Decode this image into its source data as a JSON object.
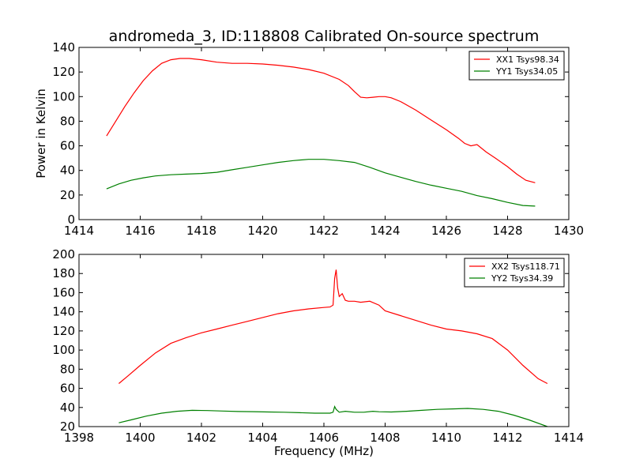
{
  "figure": {
    "title": "andromeda_3, ID:118808 Calibrated On-source spectrum",
    "ylabel": "Power in Kelvin",
    "xlabel": "Frequency (MHz)"
  },
  "chart_data": [
    {
      "type": "line",
      "xlim": [
        1414,
        1430
      ],
      "ylim": [
        0,
        140
      ],
      "xticks": [
        1414,
        1416,
        1418,
        1420,
        1422,
        1424,
        1426,
        1428,
        1430
      ],
      "yticks": [
        0,
        20,
        40,
        60,
        80,
        100,
        120,
        140
      ],
      "legend": "top-right",
      "series": [
        {
          "name": "XX1 Tsys98.34",
          "color": "#ff0000",
          "x": [
            1414.9,
            1415.2,
            1415.5,
            1415.8,
            1416.1,
            1416.4,
            1416.7,
            1417.0,
            1417.3,
            1417.6,
            1418.0,
            1418.5,
            1419.0,
            1419.5,
            1420.0,
            1420.5,
            1421.0,
            1421.5,
            1422.0,
            1422.5,
            1422.8,
            1423.0,
            1423.2,
            1423.4,
            1423.6,
            1423.8,
            1424.0,
            1424.2,
            1424.5,
            1425.0,
            1425.5,
            1426.0,
            1426.4,
            1426.6,
            1426.8,
            1427.0,
            1427.3,
            1427.6,
            1428.0,
            1428.3,
            1428.6,
            1428.9
          ],
          "y": [
            68,
            80,
            92,
            103,
            113,
            121,
            127,
            130,
            131,
            131,
            130,
            128,
            127,
            127,
            126.5,
            125.5,
            124,
            122,
            119,
            114,
            109,
            104,
            99.5,
            99,
            99.5,
            100,
            100,
            99,
            96,
            89,
            81,
            73,
            66,
            62,
            60,
            61,
            55,
            50,
            43,
            37,
            32,
            30
          ]
        },
        {
          "name": "YY1 Tsys34.05",
          "color": "#008000",
          "x": [
            1414.9,
            1415.3,
            1415.7,
            1416.1,
            1416.5,
            1417.0,
            1417.5,
            1418.0,
            1418.5,
            1419.0,
            1419.5,
            1420.0,
            1420.5,
            1421.0,
            1421.5,
            1422.0,
            1422.5,
            1423.0,
            1423.5,
            1424.0,
            1424.5,
            1425.0,
            1425.5,
            1426.0,
            1426.5,
            1427.0,
            1427.5,
            1428.0,
            1428.5,
            1428.9
          ],
          "y": [
            25,
            29,
            32,
            34,
            35.5,
            36.5,
            37,
            37.5,
            38.5,
            40.5,
            42.5,
            44.5,
            46.5,
            48,
            49,
            49,
            48,
            46.5,
            42.5,
            38,
            34.5,
            31,
            28,
            25.5,
            23,
            19.5,
            17,
            14,
            11.5,
            11
          ]
        }
      ]
    },
    {
      "type": "line",
      "xlim": [
        1398,
        1414
      ],
      "ylim": [
        20,
        200
      ],
      "xticks": [
        1398,
        1400,
        1402,
        1404,
        1406,
        1408,
        1410,
        1412,
        1414
      ],
      "yticks": [
        20,
        40,
        60,
        80,
        100,
        120,
        140,
        160,
        180,
        200
      ],
      "legend": "top-right",
      "series": [
        {
          "name": "XX2 Tsys118.71",
          "color": "#ff0000",
          "x": [
            1399.3,
            1399.6,
            1400.0,
            1400.5,
            1401.0,
            1401.5,
            1402.0,
            1402.5,
            1403.0,
            1403.5,
            1404.0,
            1404.5,
            1405.0,
            1405.5,
            1406.0,
            1406.2,
            1406.3,
            1406.35,
            1406.4,
            1406.45,
            1406.5,
            1406.6,
            1406.7,
            1406.8,
            1407.0,
            1407.2,
            1407.5,
            1407.8,
            1408.0,
            1408.5,
            1409.0,
            1409.5,
            1410.0,
            1410.5,
            1411.0,
            1411.5,
            1412.0,
            1412.5,
            1413.0,
            1413.3
          ],
          "y": [
            65,
            73,
            84,
            97,
            107,
            113,
            118,
            122,
            126,
            130,
            134,
            138,
            141,
            143,
            144.5,
            145,
            147,
            175,
            184,
            165,
            156,
            159,
            152,
            151,
            151,
            150,
            151,
            147,
            141,
            136,
            131,
            126,
            122,
            120,
            117,
            112,
            100,
            84,
            70,
            65
          ]
        },
        {
          "name": "YY2 Tsys34.39",
          "color": "#008000",
          "x": [
            1399.3,
            1399.7,
            1400.2,
            1400.7,
            1401.2,
            1401.7,
            1402.2,
            1402.7,
            1403.2,
            1403.7,
            1404.2,
            1404.7,
            1405.2,
            1405.7,
            1406.2,
            1406.3,
            1406.35,
            1406.4,
            1406.5,
            1406.7,
            1407.0,
            1407.3,
            1407.6,
            1407.8,
            1408.2,
            1408.7,
            1409.2,
            1409.7,
            1410.2,
            1410.7,
            1411.2,
            1411.7,
            1412.2,
            1412.7,
            1413.3
          ],
          "y": [
            24,
            27,
            31,
            34,
            36,
            37,
            36.8,
            36.3,
            35.8,
            35.6,
            35.3,
            35,
            34.5,
            34,
            34,
            35,
            41,
            38,
            35,
            36,
            35,
            35,
            36,
            35.5,
            35.3,
            36,
            37,
            38,
            38.5,
            39,
            38,
            36,
            32,
            27,
            20
          ]
        }
      ]
    }
  ]
}
